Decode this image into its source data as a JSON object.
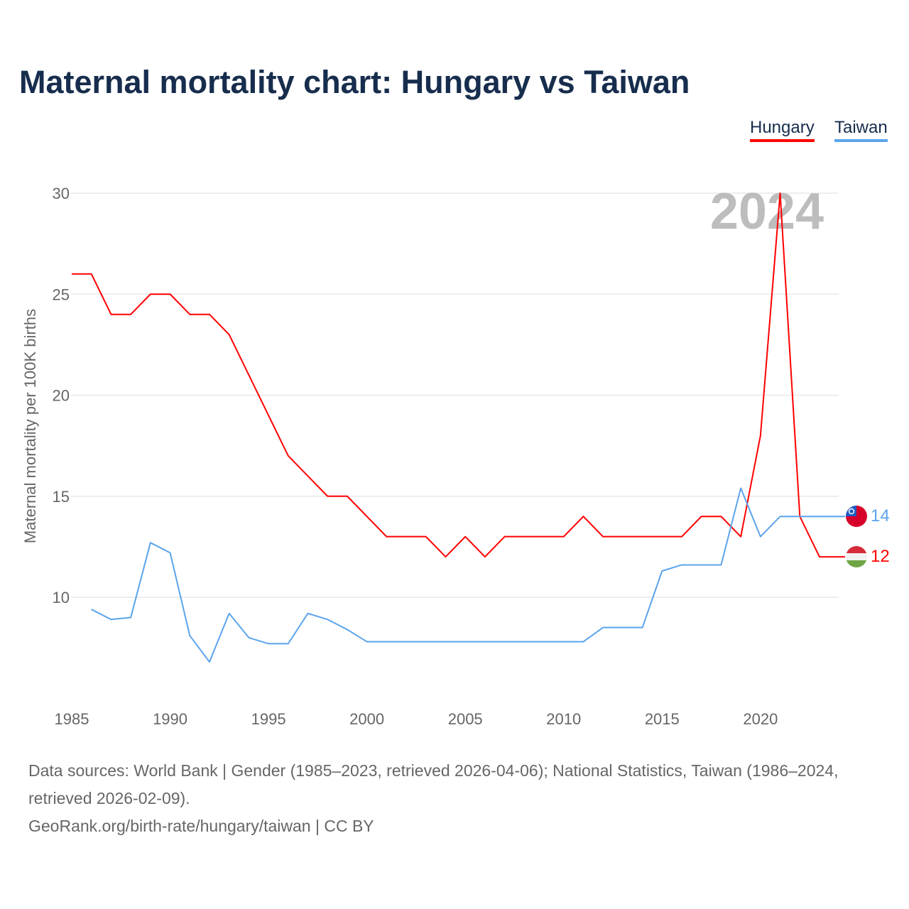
{
  "title": "Maternal mortality chart: Hungary vs Taiwan",
  "year_watermark": "2024",
  "footer": {
    "line1": "Data sources: World Bank | Gender (1985–2023, retrieved 2026-04-06); National Statistics, Taiwan (1986–2024, retrieved 2026-02-09).",
    "line2": "GeoRank.org/birth-rate/hungary/taiwan | CC BY"
  },
  "chart_data": {
    "type": "line",
    "title": "Maternal mortality chart: Hungary vs Taiwan",
    "xlabel": "",
    "ylabel": "Maternal mortality per 100K births",
    "xlim": [
      1985,
      2024
    ],
    "ylim": [
      5,
      31
    ],
    "x_ticks": [
      1985,
      1990,
      1995,
      2000,
      2005,
      2010,
      2015,
      2020
    ],
    "y_ticks": [
      10,
      15,
      20,
      25,
      30
    ],
    "grid": true,
    "legend_position": "top-right",
    "series": [
      {
        "name": "Hungary",
        "color": "#ff0000",
        "end_label": "12",
        "x": [
          1985,
          1986,
          1987,
          1988,
          1989,
          1990,
          1991,
          1992,
          1993,
          1994,
          1995,
          1996,
          1997,
          1998,
          1999,
          2000,
          2001,
          2002,
          2003,
          2004,
          2005,
          2006,
          2007,
          2008,
          2009,
          2010,
          2011,
          2012,
          2013,
          2014,
          2015,
          2016,
          2017,
          2018,
          2019,
          2020,
          2021,
          2022,
          2023
        ],
        "values": [
          26,
          26,
          24,
          24,
          25,
          25,
          24,
          24,
          23,
          21,
          19,
          17,
          16,
          15,
          15,
          14,
          13,
          13,
          13,
          12,
          13,
          12,
          13,
          13,
          13,
          13,
          14,
          13,
          13,
          13,
          13,
          13,
          14,
          14,
          13,
          18,
          30,
          14,
          12
        ]
      },
      {
        "name": "Taiwan",
        "color": "#5ba4ec",
        "end_label": "14",
        "x": [
          1986,
          1987,
          1988,
          1989,
          1990,
          1991,
          1992,
          1993,
          1994,
          1995,
          1996,
          1997,
          1998,
          1999,
          2000,
          2001,
          2002,
          2003,
          2004,
          2005,
          2006,
          2007,
          2008,
          2009,
          2010,
          2011,
          2012,
          2013,
          2014,
          2015,
          2016,
          2017,
          2018,
          2019,
          2020,
          2021,
          2022,
          2023,
          2024
        ],
        "values": [
          9.4,
          8.9,
          9.0,
          12.7,
          12.2,
          8.1,
          6.8,
          9.2,
          8.0,
          7.7,
          7.7,
          9.2,
          8.9,
          8.4,
          7.8,
          7.8,
          7.8,
          7.8,
          7.8,
          7.8,
          7.8,
          7.8,
          7.8,
          7.8,
          7.8,
          7.8,
          8.5,
          8.5,
          8.5,
          11.3,
          11.6,
          11.6,
          11.6,
          15.4,
          13.0,
          14.0,
          14.0,
          14.0,
          14.0
        ]
      }
    ]
  }
}
